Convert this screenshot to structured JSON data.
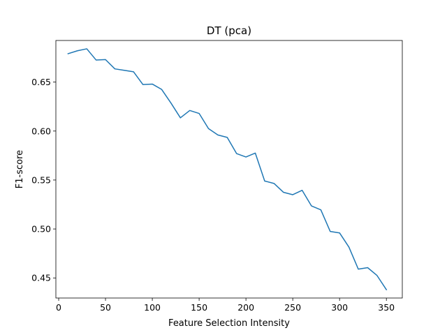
{
  "chart_data": {
    "type": "line",
    "title": "DT (pca)",
    "xlabel": "Feature Selection Intensity",
    "ylabel": "F1-score",
    "xlim": [
      -3,
      367
    ],
    "ylim": [
      0.4295,
      0.6925
    ],
    "xticks": [
      0,
      50,
      100,
      150,
      200,
      250,
      300,
      350
    ],
    "yticks": [
      0.45,
      0.5,
      0.55,
      0.6,
      0.65
    ],
    "ytick_labels": [
      "0.45",
      "0.50",
      "0.55",
      "0.60",
      "0.65"
    ],
    "grid": false,
    "series": [
      {
        "color": "#1f77b4",
        "x": [
          10,
          20,
          30,
          40,
          50,
          60,
          70,
          80,
          90,
          100,
          110,
          120,
          130,
          140,
          150,
          160,
          170,
          180,
          190,
          200,
          210,
          220,
          230,
          240,
          250,
          260,
          270,
          280,
          290,
          300,
          310,
          320,
          330,
          340,
          350
        ],
        "y": [
          0.679,
          0.682,
          0.684,
          0.6725,
          0.673,
          0.6635,
          0.662,
          0.6605,
          0.6475,
          0.648,
          0.6425,
          0.6285,
          0.6135,
          0.621,
          0.618,
          0.6025,
          0.596,
          0.5935,
          0.577,
          0.5735,
          0.5775,
          0.549,
          0.5465,
          0.5375,
          0.535,
          0.5395,
          0.5235,
          0.5195,
          0.4975,
          0.496,
          0.4815,
          0.459,
          0.4605,
          0.4525,
          0.438
        ]
      }
    ]
  }
}
